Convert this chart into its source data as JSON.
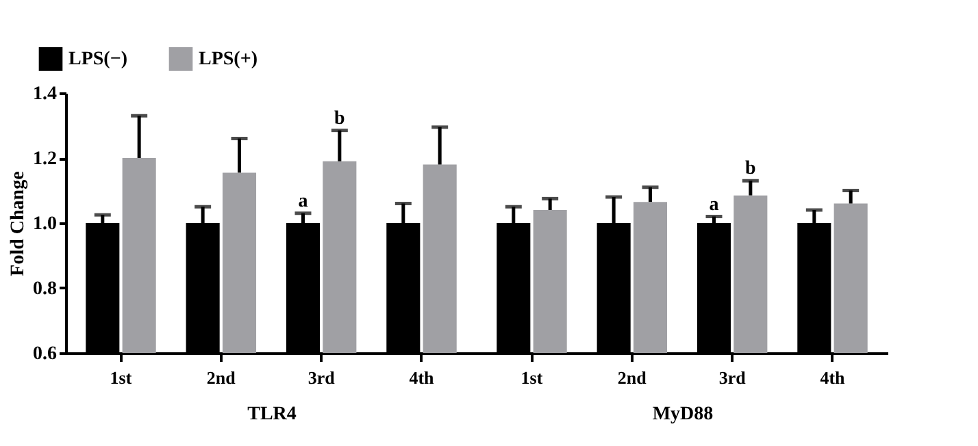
{
  "chart_data": [
    {
      "type": "bar",
      "xlabel": "TLR4",
      "ylabel": "Fold Change",
      "categories": [
        "1st",
        "2nd",
        "3rd",
        "4th"
      ],
      "series": [
        {
          "name": "LPS(−)",
          "color": "#000000",
          "values": [
            1.0,
            1.0,
            1.0,
            1.0
          ],
          "errors": [
            [
              1.0,
              1.025
            ],
            [
              1.0,
              1.05
            ],
            [
              1.0,
              1.03
            ],
            [
              1.0,
              1.06
            ]
          ]
        },
        {
          "name": "LPS(+)",
          "color": "#a0a0a4",
          "values": [
            1.2,
            1.155,
            1.19,
            1.18
          ],
          "errors": [
            [
              1.2,
              1.33
            ],
            [
              1.155,
              1.26
            ],
            [
              1.19,
              1.285
            ],
            [
              1.18,
              1.295
            ]
          ]
        }
      ],
      "ylim": [
        0.6,
        1.4
      ],
      "yticks": [
        {
          "value": 0.6,
          "label": "0.6"
        },
        {
          "value": 0.8,
          "label": "0.8"
        },
        {
          "value": 1.0,
          "label": "1.0"
        },
        {
          "value": 1.2,
          "label": "1.2"
        },
        {
          "value": 1.4,
          "label": "1.4"
        }
      ],
      "legend": "top left",
      "grid": false,
      "annotations": [
        {
          "text": "a",
          "x": "3rd",
          "y": 1.0
        },
        {
          "text": "b",
          "x": "3rd",
          "y": 1.19
        }
      ]
    },
    {
      "type": "bar",
      "xlabel": "MyD88",
      "categories": [
        "1st",
        "2nd",
        "3rd",
        "4th"
      ],
      "series": [
        {
          "color": "#000000",
          "values": [
            1.0,
            1.0,
            1.0,
            1.0
          ],
          "errors": [
            [
              1.0,
              1.05
            ],
            [
              1.0,
              1.08
            ],
            [
              1.0,
              1.02
            ],
            [
              1.0,
              1.04
            ]
          ]
        },
        {
          "color": "#a0a0a4",
          "values": [
            1.04,
            1.065,
            1.085,
            1.06
          ],
          "errors": [
            [
              1.04,
              1.075
            ],
            [
              1.065,
              1.11
            ],
            [
              1.085,
              1.13
            ],
            [
              1.06,
              1.1
            ]
          ]
        }
      ],
      "ylim": [
        0.6,
        1.4
      ],
      "tick_labels": "x",
      "grid": false,
      "annotations": [
        {
          "text": "a",
          "x": "3rd",
          "y": 1.0
        },
        {
          "text": "b",
          "x": "3rd",
          "y": 1.085
        }
      ]
    }
  ]
}
